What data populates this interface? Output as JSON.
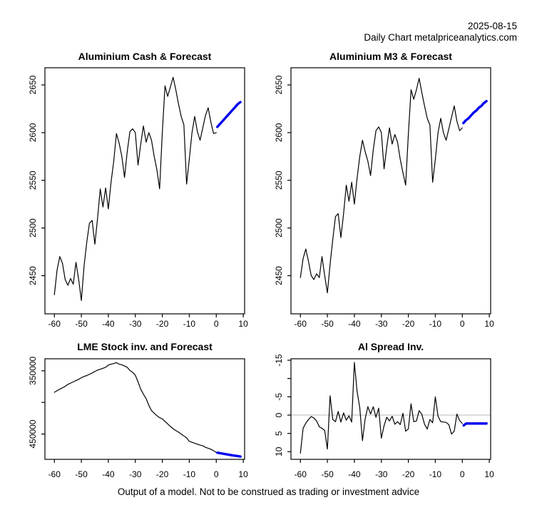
{
  "header": {
    "date": "2025-08-15",
    "source_line": "Daily Chart metalpriceanalytics.com"
  },
  "footer": {
    "disclaimer": "Output of a model. Not to be construed as trading or investment advice"
  },
  "colors": {
    "history": "#000000",
    "forecast": "#0000EE",
    "zero_line": "#BFBFBF",
    "axis": "#000000",
    "background": "#FFFFFF"
  },
  "chart_data": [
    {
      "id": "aluminium-cash",
      "type": "line",
      "title": "Aluminium Cash & Forecast",
      "x_range": [
        -63.5,
        10.5
      ],
      "y_top": 2668,
      "y_bottom": 2410,
      "xticks": [
        -60,
        -50,
        -40,
        -30,
        -20,
        -10,
        0,
        10
      ],
      "yticks": [
        {
          "v": 2450,
          "label": "2450"
        },
        {
          "v": 2500,
          "label": "2500"
        },
        {
          "v": 2550,
          "label": "2550"
        },
        {
          "v": 2600,
          "label": "2600"
        },
        {
          "v": 2650,
          "label": "2650"
        }
      ],
      "zero_line": false,
      "series": [
        {
          "name": "history",
          "color": "#000000",
          "width": 1.2,
          "x_start": -60,
          "x_step": 1,
          "values": [
            2430,
            2456,
            2470,
            2463,
            2446,
            2440,
            2447,
            2441,
            2464,
            2446,
            2424,
            2460,
            2485,
            2505,
            2508,
            2483,
            2510,
            2541,
            2522,
            2542,
            2520,
            2548,
            2570,
            2599,
            2589,
            2575,
            2553,
            2580,
            2601,
            2604,
            2600,
            2566,
            2588,
            2607,
            2590,
            2600,
            2592,
            2575,
            2561,
            2541,
            2600,
            2649,
            2638,
            2648,
            2658,
            2645,
            2630,
            2617,
            2608,
            2546,
            2572,
            2600,
            2617,
            2601,
            2592,
            2605,
            2618,
            2626,
            2611,
            2599,
            2600
          ]
        },
        {
          "name": "forecast",
          "color": "#0000EE",
          "width": 3.4,
          "x_start": 0.4,
          "x_step": 0.95,
          "values": [
            2606,
            2609,
            2612,
            2615,
            2618,
            2621,
            2624,
            2627,
            2630,
            2632
          ]
        }
      ]
    },
    {
      "id": "aluminium-m3",
      "type": "line",
      "title": "Aluminium M3 & Forecast",
      "x_range": [
        -63.5,
        10.5
      ],
      "y_top": 2668,
      "y_bottom": 2410,
      "xticks": [
        -60,
        -50,
        -40,
        -30,
        -20,
        -10,
        0,
        10
      ],
      "yticks": [
        {
          "v": 2450,
          "label": "2450"
        },
        {
          "v": 2500,
          "label": "2500"
        },
        {
          "v": 2550,
          "label": "2550"
        },
        {
          "v": 2600,
          "label": "2600"
        },
        {
          "v": 2650,
          "label": "2650"
        }
      ],
      "zero_line": false,
      "series": [
        {
          "name": "history",
          "color": "#000000",
          "width": 1.2,
          "x_start": -60,
          "x_step": 1,
          "values": [
            2448,
            2468,
            2478,
            2465,
            2450,
            2446,
            2452,
            2448,
            2470,
            2450,
            2432,
            2462,
            2488,
            2512,
            2515,
            2490,
            2515,
            2545,
            2528,
            2548,
            2525,
            2552,
            2575,
            2592,
            2580,
            2570,
            2555,
            2582,
            2602,
            2606,
            2600,
            2562,
            2585,
            2605,
            2588,
            2598,
            2590,
            2572,
            2558,
            2545,
            2598,
            2645,
            2635,
            2645,
            2657,
            2642,
            2628,
            2615,
            2608,
            2548,
            2572,
            2600,
            2615,
            2600,
            2592,
            2604,
            2616,
            2628,
            2612,
            2602,
            2605
          ]
        },
        {
          "name": "forecast",
          "color": "#0000EE",
          "width": 3.4,
          "x_start": 0.4,
          "x_step": 0.95,
          "values": [
            2610,
            2613,
            2615,
            2618,
            2621,
            2623,
            2626,
            2628,
            2631,
            2633
          ]
        }
      ]
    },
    {
      "id": "lme-stock",
      "type": "line",
      "title": "LME Stock inv. and Forecast",
      "x_range": [
        -63.5,
        10.5
      ],
      "y_top": 331000,
      "y_bottom": 490000,
      "y_axis_inverted": true,
      "xticks": [
        -60,
        -50,
        -40,
        -30,
        -20,
        -10,
        0,
        10
      ],
      "yticks": [
        {
          "v": 350000,
          "label": "350000"
        },
        {
          "v": 400000,
          "label": ""
        },
        {
          "v": 450000,
          "label": "450000"
        }
      ],
      "zero_line": false,
      "series": [
        {
          "name": "history",
          "color": "#000000",
          "width": 1.2,
          "x_start": -60,
          "x_step": 1,
          "values": [
            384000,
            381500,
            379000,
            377000,
            374500,
            371500,
            369500,
            367500,
            365500,
            363500,
            361000,
            359000,
            357500,
            355500,
            353500,
            351000,
            349000,
            347500,
            346000,
            344500,
            341000,
            339500,
            338500,
            337000,
            339500,
            340500,
            342500,
            344500,
            349500,
            352500,
            357000,
            367500,
            379000,
            387000,
            394000,
            404500,
            413000,
            417000,
            421000,
            424000,
            426000,
            430000,
            434000,
            438000,
            441500,
            444500,
            447000,
            450000,
            453000,
            456000,
            461500,
            463000,
            464500,
            466000,
            467500,
            468500,
            471000,
            472500,
            474000,
            476500,
            479000
          ]
        },
        {
          "name": "forecast",
          "color": "#0000EE",
          "width": 3.4,
          "x_start": 0.4,
          "x_step": 0.95,
          "values": [
            479500,
            480200,
            480900,
            481600,
            482300,
            483000,
            483700,
            484300,
            484900,
            485500
          ]
        }
      ]
    },
    {
      "id": "al-spread",
      "type": "line",
      "title": "Al Spread Inv.",
      "x_range": [
        -63.5,
        10.5
      ],
      "y_top": -15.4,
      "y_bottom": 12.1,
      "y_axis_inverted": true,
      "xticks": [
        -60,
        -50,
        -40,
        -30,
        -20,
        -10,
        0,
        10
      ],
      "yticks": [
        {
          "v": -15,
          "label": "-15"
        },
        {
          "v": -10,
          "label": ""
        },
        {
          "v": -5,
          "label": "-5"
        },
        {
          "v": 0,
          "label": "0"
        },
        {
          "v": 5,
          "label": "5"
        },
        {
          "v": 10,
          "label": "10"
        }
      ],
      "zero_line": true,
      "series": [
        {
          "name": "history",
          "color": "#000000",
          "width": 1.2,
          "x_start": -60,
          "x_step": 1,
          "values": [
            10.4,
            3.6,
            2.2,
            1.2,
            0.4,
            0.8,
            1.6,
            3.2,
            3.6,
            4.2,
            9.3,
            -5.3,
            1.2,
            1.8,
            -1.0,
            1.9,
            -0.6,
            1.4,
            0.2,
            1.9,
            -14.4,
            -6.5,
            -2.0,
            7.0,
            1.0,
            -2.3,
            -0.3,
            -2.3,
            0.6,
            -1.9,
            6.3,
            2.9,
            0.6,
            1.6,
            0.3,
            2.5,
            1.8,
            2.6,
            -0.5,
            4.4,
            3.8,
            -3.1,
            1.8,
            1.6,
            -1.2,
            -0.2,
            2.5,
            3.8,
            1.2,
            2.1,
            -5.0,
            0.3,
            1.8,
            1.9,
            2.0,
            2.6,
            5.2,
            4.4,
            -0.3,
            1.5,
            2.3
          ]
        },
        {
          "name": "forecast",
          "color": "#0000EE",
          "width": 3.4,
          "x_start": 0.5,
          "x_step": 0.94,
          "values": [
            2.8,
            2.3,
            2.3,
            2.3,
            2.3,
            2.3,
            2.3,
            2.3,
            2.3,
            2.3
          ]
        }
      ]
    }
  ]
}
